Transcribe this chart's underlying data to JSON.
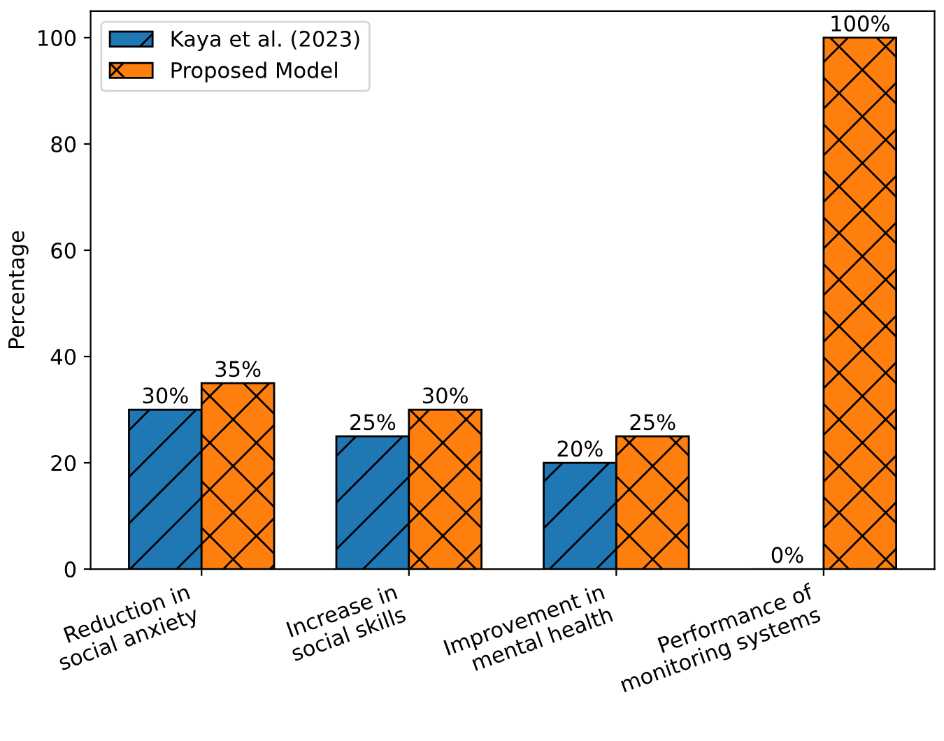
{
  "chart_data": {
    "type": "bar",
    "ylabel": "Percentage",
    "categories": [
      "Reduction in\nsocial anxiety",
      "Increase in\nsocial skills",
      "Improvement in\nmental health",
      "Performance of\nmonitoring systems"
    ],
    "series": [
      {
        "name": "Kaya et al. (2023)",
        "color": "#1f77b4",
        "values": [
          30,
          25,
          20,
          0
        ],
        "value_labels": [
          "30%",
          "25%",
          "20%",
          "0%"
        ]
      },
      {
        "name": "Proposed Model",
        "color": "#ff7f0e",
        "values": [
          35,
          30,
          25,
          100
        ],
        "value_labels": [
          "35%",
          "30%",
          "25%",
          "100%"
        ]
      }
    ],
    "ylim": [
      0,
      105
    ],
    "yticks": [
      0,
      20,
      40,
      60,
      80,
      100
    ],
    "legend": "top left",
    "grid": false
  }
}
